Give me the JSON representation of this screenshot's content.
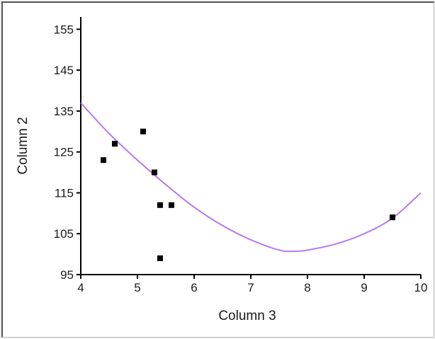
{
  "chart_data": {
    "type": "scatter",
    "title": "",
    "xlabel": "Column 3",
    "ylabel": "Column 2",
    "xlim": [
      4,
      10
    ],
    "ylim": [
      95,
      158
    ],
    "xticks": [
      4,
      5,
      6,
      7,
      8,
      9,
      10
    ],
    "yticks": [
      95,
      105,
      115,
      125,
      135,
      145,
      155
    ],
    "grid": false,
    "legend": "none",
    "points": [
      {
        "x": 4.4,
        "y": 123
      },
      {
        "x": 4.6,
        "y": 127
      },
      {
        "x": 5.1,
        "y": 130
      },
      {
        "x": 5.3,
        "y": 120
      },
      {
        "x": 5.4,
        "y": 112
      },
      {
        "x": 5.4,
        "y": 99
      },
      {
        "x": 5.6,
        "y": 112
      },
      {
        "x": 9.5,
        "y": 109
      }
    ],
    "fit_curve": {
      "kind": "quadratic",
      "color": "#b478f0",
      "points": [
        {
          "x": 4.0,
          "y": 137
        },
        {
          "x": 4.5,
          "y": 129.5
        },
        {
          "x": 5.0,
          "y": 123
        },
        {
          "x": 5.5,
          "y": 117
        },
        {
          "x": 6.0,
          "y": 111.5
        },
        {
          "x": 6.5,
          "y": 107
        },
        {
          "x": 7.0,
          "y": 103.5
        },
        {
          "x": 7.5,
          "y": 101
        },
        {
          "x": 7.75,
          "y": 100.7
        },
        {
          "x": 8.0,
          "y": 101
        },
        {
          "x": 8.5,
          "y": 102.5
        },
        {
          "x": 9.0,
          "y": 105
        },
        {
          "x": 9.5,
          "y": 108.8
        },
        {
          "x": 10.0,
          "y": 115
        }
      ]
    },
    "colors": {
      "points": "#000000",
      "axes": "#000000",
      "background": "#ffffff"
    }
  }
}
